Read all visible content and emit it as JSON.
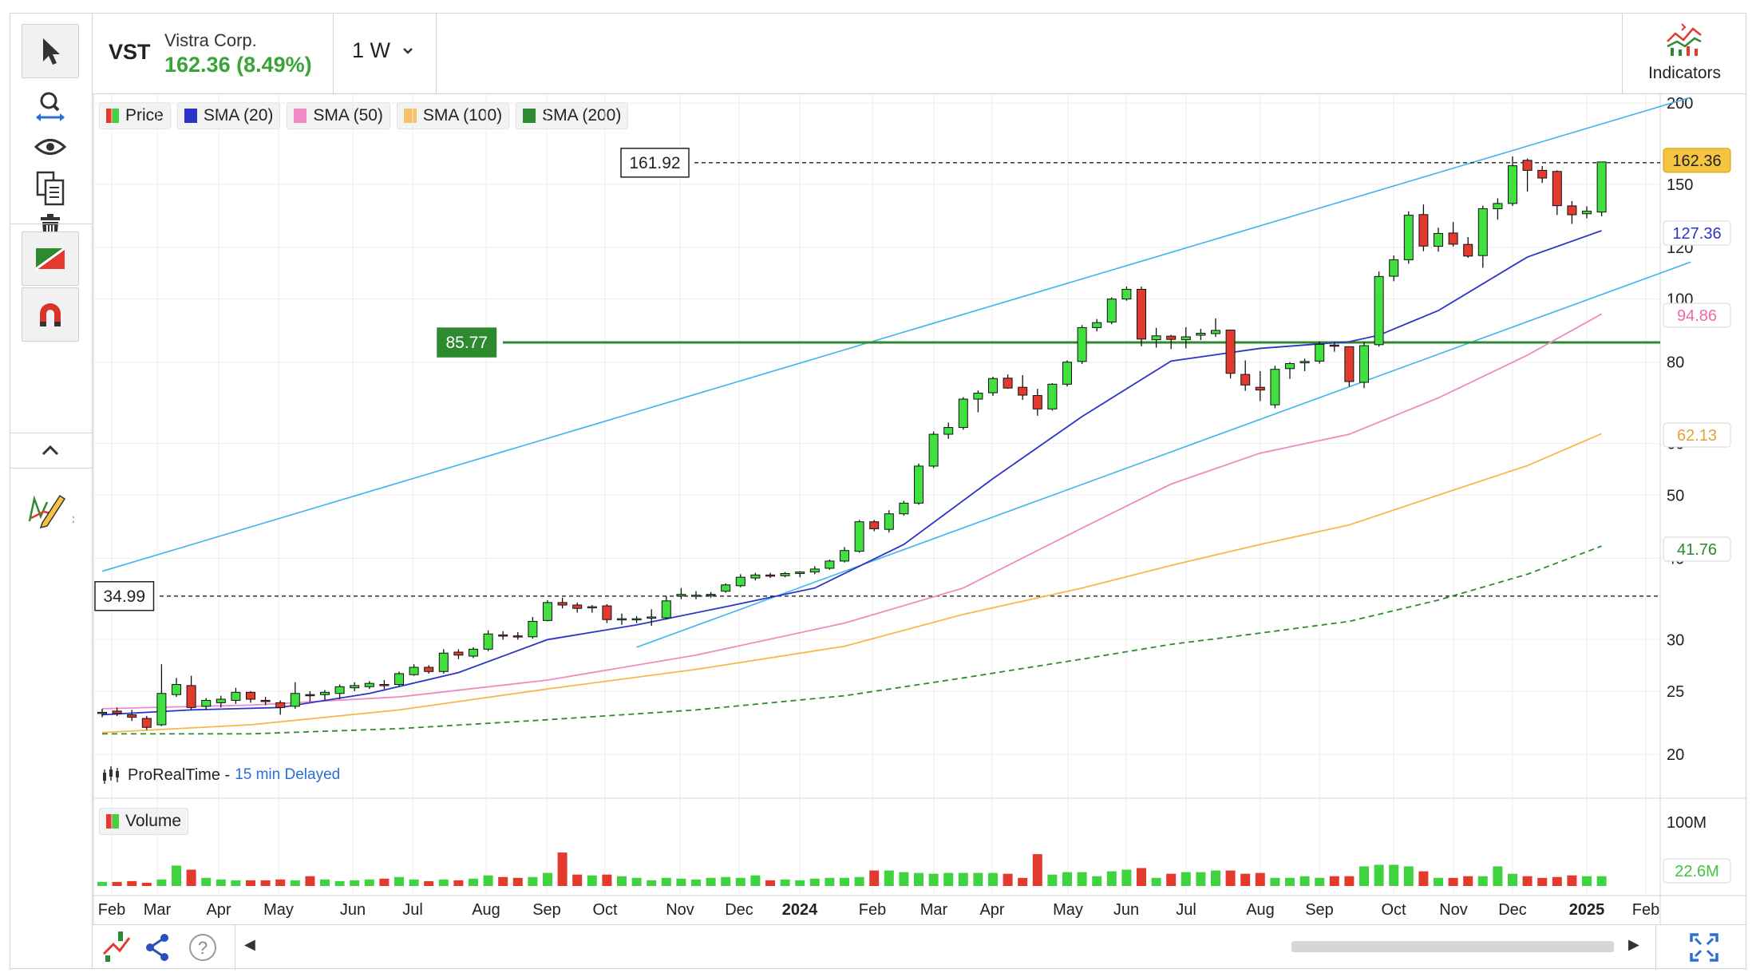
{
  "header": {
    "ticker": "VST",
    "company": "Vistra Corp.",
    "price_change": "162.36 (8.49%)",
    "interval": "1 W",
    "indicators_label": "Indicators"
  },
  "legend": {
    "items": [
      {
        "label": "Price",
        "color": "#e23b2e",
        "color2": "#3fd33f"
      },
      {
        "label": "SMA (20)",
        "color": "#2b34c8"
      },
      {
        "label": "SMA (50)",
        "color": "#f08ac2"
      },
      {
        "label": "SMA (100)",
        "color": "#f5c26b"
      },
      {
        "label": "SMA (200)",
        "color": "#2e8a2e"
      }
    ],
    "volume_label": "Volume"
  },
  "source": {
    "name": "ProRealTime -",
    "delay": "15 min Delayed"
  },
  "levels": {
    "top_dashed": "161.92",
    "horizontal": "85.77",
    "bottom_dashed": "34.99"
  },
  "right_tags": {
    "last_price": "162.36",
    "sma20": "127.36",
    "sma50": "94.86",
    "sma100": "62.13",
    "sma200": "41.76",
    "volume_last": "22.6M"
  },
  "chart_data": {
    "type": "candlestick",
    "y_scale": "log",
    "y_ticks": [
      "200",
      "150",
      "120",
      "100",
      "80",
      "60",
      "50",
      "40",
      "30",
      "25",
      "20"
    ],
    "x_ticks": [
      "Feb",
      "Mar",
      "Apr",
      "May",
      "Jun",
      "Jul",
      "Aug",
      "Sep",
      "Oct",
      "Nov",
      "Dec",
      "2024",
      "Feb",
      "Mar",
      "Apr",
      "May",
      "Jun",
      "Jul",
      "Aug",
      "Sep",
      "Oct",
      "Nov",
      "Dec",
      "2025",
      "Feb"
    ],
    "volume_ticks": [
      "100M"
    ],
    "ohlc": [
      [
        23.1,
        23.5,
        22.8,
        23.2
      ],
      [
        23.3,
        23.6,
        22.9,
        23.1
      ],
      [
        23.0,
        23.4,
        22.5,
        22.8
      ],
      [
        22.7,
        22.9,
        21.8,
        22.0
      ],
      [
        22.2,
        27.5,
        22.1,
        24.8
      ],
      [
        24.7,
        26.2,
        24.5,
        25.6
      ],
      [
        25.5,
        26.4,
        23.4,
        23.6
      ],
      [
        23.7,
        24.4,
        23.4,
        24.2
      ],
      [
        24.0,
        24.6,
        23.6,
        24.3
      ],
      [
        24.2,
        25.3,
        23.9,
        24.9
      ],
      [
        24.9,
        25.0,
        24.0,
        24.3
      ],
      [
        24.2,
        24.5,
        23.8,
        24.1
      ],
      [
        24.0,
        24.2,
        23.0,
        23.6
      ],
      [
        23.7,
        25.8,
        23.5,
        24.8
      ],
      [
        24.7,
        25.0,
        24.1,
        24.6
      ],
      [
        24.7,
        25.1,
        24.2,
        24.9
      ],
      [
        24.8,
        25.6,
        24.3,
        25.4
      ],
      [
        25.3,
        25.8,
        25.0,
        25.5
      ],
      [
        25.4,
        25.9,
        25.2,
        25.7
      ],
      [
        25.6,
        26.0,
        25.2,
        25.5
      ],
      [
        25.6,
        26.8,
        25.4,
        26.6
      ],
      [
        26.5,
        27.5,
        26.4,
        27.2
      ],
      [
        27.2,
        27.4,
        26.6,
        26.8
      ],
      [
        26.8,
        29.0,
        26.6,
        28.6
      ],
      [
        28.7,
        29.0,
        28.0,
        28.4
      ],
      [
        28.3,
        29.2,
        28.1,
        29.0
      ],
      [
        29.0,
        31.0,
        28.8,
        30.6
      ],
      [
        30.5,
        30.9,
        30.0,
        30.4
      ],
      [
        30.4,
        30.8,
        30.0,
        30.3
      ],
      [
        30.3,
        32.5,
        30.1,
        32.0
      ],
      [
        32.1,
        34.5,
        32.0,
        34.2
      ],
      [
        34.2,
        34.8,
        33.5,
        33.9
      ],
      [
        33.9,
        34.2,
        33.0,
        33.5
      ],
      [
        33.6,
        33.9,
        33.0,
        33.7
      ],
      [
        33.8,
        34.0,
        31.8,
        32.2
      ],
      [
        32.2,
        32.9,
        31.6,
        32.3
      ],
      [
        32.2,
        32.6,
        31.8,
        32.3
      ],
      [
        32.5,
        33.4,
        31.5,
        32.5
      ],
      [
        32.4,
        35.0,
        32.2,
        34.4
      ],
      [
        35.0,
        36.0,
        34.6,
        35.2
      ],
      [
        35.0,
        35.6,
        34.6,
        35.1
      ],
      [
        35.2,
        35.5,
        34.8,
        35.2
      ],
      [
        35.6,
        36.6,
        35.4,
        36.4
      ],
      [
        36.3,
        37.8,
        36.1,
        37.4
      ],
      [
        37.3,
        38.0,
        37.0,
        37.7
      ],
      [
        37.7,
        38.0,
        37.3,
        37.6
      ],
      [
        37.6,
        38.1,
        37.4,
        37.9
      ],
      [
        37.9,
        38.2,
        37.4,
        38.1
      ],
      [
        38.1,
        38.9,
        37.8,
        38.5
      ],
      [
        38.6,
        39.8,
        38.4,
        39.6
      ],
      [
        39.6,
        41.6,
        39.4,
        41.1
      ],
      [
        41.0,
        45.8,
        40.8,
        45.5
      ],
      [
        45.5,
        45.8,
        44.0,
        44.4
      ],
      [
        44.3,
        47.4,
        43.8,
        46.8
      ],
      [
        46.8,
        49.0,
        46.5,
        48.6
      ],
      [
        48.6,
        55.9,
        48.3,
        55.4
      ],
      [
        55.4,
        62.6,
        55.0,
        62.0
      ],
      [
        62.0,
        64.6,
        61.0,
        63.5
      ],
      [
        63.5,
        70.7,
        63.0,
        70.2
      ],
      [
        70.2,
        72.4,
        67.0,
        71.7
      ],
      [
        71.8,
        76.0,
        71.0,
        75.5
      ],
      [
        75.6,
        76.6,
        72.8,
        73.0
      ],
      [
        73.2,
        76.4,
        70.0,
        71.2
      ],
      [
        71.1,
        72.8,
        66.2,
        67.8
      ],
      [
        67.8,
        74.3,
        67.4,
        74.0
      ],
      [
        74.0,
        80.5,
        73.4,
        80.0
      ],
      [
        80.2,
        91.2,
        79.5,
        90.4
      ],
      [
        90.4,
        93.2,
        89.2,
        92.0
      ],
      [
        92.2,
        100.6,
        91.5,
        100.0
      ],
      [
        100.0,
        104.5,
        99.4,
        103.5
      ],
      [
        103.5,
        104.5,
        84.6,
        86.8
      ],
      [
        86.6,
        90.3,
        84.2,
        87.8
      ],
      [
        87.7,
        88.1,
        83.8,
        86.7
      ],
      [
        86.6,
        90.5,
        84.0,
        87.5
      ],
      [
        88.0,
        90.0,
        86.5,
        88.6
      ],
      [
        88.5,
        93.4,
        87.5,
        89.5
      ],
      [
        89.6,
        89.6,
        75.5,
        76.9
      ],
      [
        76.6,
        80.5,
        72.3,
        73.8
      ],
      [
        73.2,
        77.5,
        69.7,
        72.5
      ],
      [
        68.8,
        79.0,
        68.0,
        78.0
      ],
      [
        78.2,
        80.0,
        75.4,
        79.6
      ],
      [
        79.8,
        81.0,
        77.5,
        80.2
      ],
      [
        80.3,
        86.0,
        79.6,
        85.2
      ],
      [
        85.0,
        85.9,
        83.0,
        84.7
      ],
      [
        84.5,
        84.5,
        73.4,
        74.7
      ],
      [
        74.5,
        85.9,
        73.0,
        84.8
      ],
      [
        85.1,
        110.2,
        84.5,
        108.3
      ],
      [
        108.4,
        116.7,
        106.5,
        114.9
      ],
      [
        114.9,
        136.3,
        113.3,
        134.5
      ],
      [
        134.8,
        139.7,
        118.4,
        120.6
      ],
      [
        120.5,
        128.7,
        118.2,
        126.1
      ],
      [
        126.3,
        131.3,
        120.4,
        121.4
      ],
      [
        121.3,
        124.5,
        115.7,
        116.4
      ],
      [
        116.6,
        139.1,
        111.7,
        137.6
      ],
      [
        137.6,
        142.8,
        132.4,
        140.2
      ],
      [
        140.2,
        165.6,
        139.0,
        160.2
      ],
      [
        163.3,
        164.3,
        146.2,
        157.6
      ],
      [
        157.6,
        160.0,
        150.7,
        153.4
      ],
      [
        157.0,
        157.6,
        134.6,
        139.1
      ],
      [
        139.0,
        141.4,
        130.4,
        134.7
      ],
      [
        135.2,
        138.8,
        133.0,
        136.4
      ],
      [
        136.0,
        162.0,
        134.0,
        162.36
      ]
    ],
    "sma20": [
      [
        0,
        23.0
      ],
      [
        6,
        23.4
      ],
      [
        12,
        23.6
      ],
      [
        18,
        24.8
      ],
      [
        24,
        26.7
      ],
      [
        30,
        30.0
      ],
      [
        36,
        31.6
      ],
      [
        42,
        33.7
      ],
      [
        48,
        36.0
      ],
      [
        54,
        42.0
      ],
      [
        60,
        53.0
      ],
      [
        66,
        66.0
      ],
      [
        72,
        80.3
      ],
      [
        78,
        84.0
      ],
      [
        84,
        86.0
      ],
      [
        86,
        88.0
      ],
      [
        90,
        96.0
      ],
      [
        96,
        116.0
      ],
      [
        101,
        127.36
      ]
    ],
    "sma50": [
      [
        0,
        23.5
      ],
      [
        10,
        23.8
      ],
      [
        20,
        24.5
      ],
      [
        30,
        26.0
      ],
      [
        40,
        28.4
      ],
      [
        50,
        31.8
      ],
      [
        58,
        36.0
      ],
      [
        66,
        44.5
      ],
      [
        72,
        52.0
      ],
      [
        78,
        58.0
      ],
      [
        84,
        62.0
      ],
      [
        90,
        70.5
      ],
      [
        96,
        82.0
      ],
      [
        101,
        94.86
      ]
    ],
    "sma100": [
      [
        0,
        21.6
      ],
      [
        10,
        22.2
      ],
      [
        20,
        23.4
      ],
      [
        30,
        25.2
      ],
      [
        40,
        27.0
      ],
      [
        50,
        29.3
      ],
      [
        58,
        32.8
      ],
      [
        66,
        36.0
      ],
      [
        72,
        39.0
      ],
      [
        78,
        42.0
      ],
      [
        84,
        45.0
      ],
      [
        90,
        50.0
      ],
      [
        96,
        55.5
      ],
      [
        101,
        62.13
      ]
    ],
    "sma200": [
      [
        0,
        21.5
      ],
      [
        10,
        21.5
      ],
      [
        20,
        21.9
      ],
      [
        30,
        22.6
      ],
      [
        40,
        23.4
      ],
      [
        50,
        24.6
      ],
      [
        58,
        26.2
      ],
      [
        66,
        28.0
      ],
      [
        72,
        29.5
      ],
      [
        78,
        30.7
      ],
      [
        84,
        32.0
      ],
      [
        90,
        34.5
      ],
      [
        96,
        37.8
      ],
      [
        101,
        41.76
      ]
    ],
    "channel_upper": [
      [
        0,
        38.2
      ],
      [
        107,
        204
      ]
    ],
    "channel_lower": [
      [
        36,
        29.2
      ],
      [
        107,
        114
      ]
    ],
    "volume": [
      5,
      5,
      6,
      4,
      8,
      25,
      20,
      10,
      8,
      7,
      7,
      7,
      8,
      7,
      12,
      8,
      6,
      7,
      8,
      9,
      11,
      8,
      6,
      8,
      7,
      9,
      13,
      11,
      10,
      11,
      16,
      41,
      14,
      13,
      14,
      12,
      10,
      7,
      10,
      9,
      8,
      10,
      11,
      10,
      13,
      7,
      8,
      7,
      9,
      10,
      10,
      11,
      19,
      19,
      17,
      16,
      15,
      16,
      16,
      16,
      16,
      15,
      10,
      39,
      14,
      17,
      17,
      12,
      18,
      20,
      22,
      10,
      15,
      17,
      17,
      19,
      19,
      15,
      16,
      10,
      10,
      12,
      10,
      12,
      12,
      24,
      26,
      26,
      24,
      18,
      10,
      10,
      12,
      12,
      24,
      15,
      12,
      10,
      11,
      13,
      12,
      12
    ]
  },
  "bottom": {
    "scroll_left": "◀",
    "scroll_right": "▶"
  }
}
